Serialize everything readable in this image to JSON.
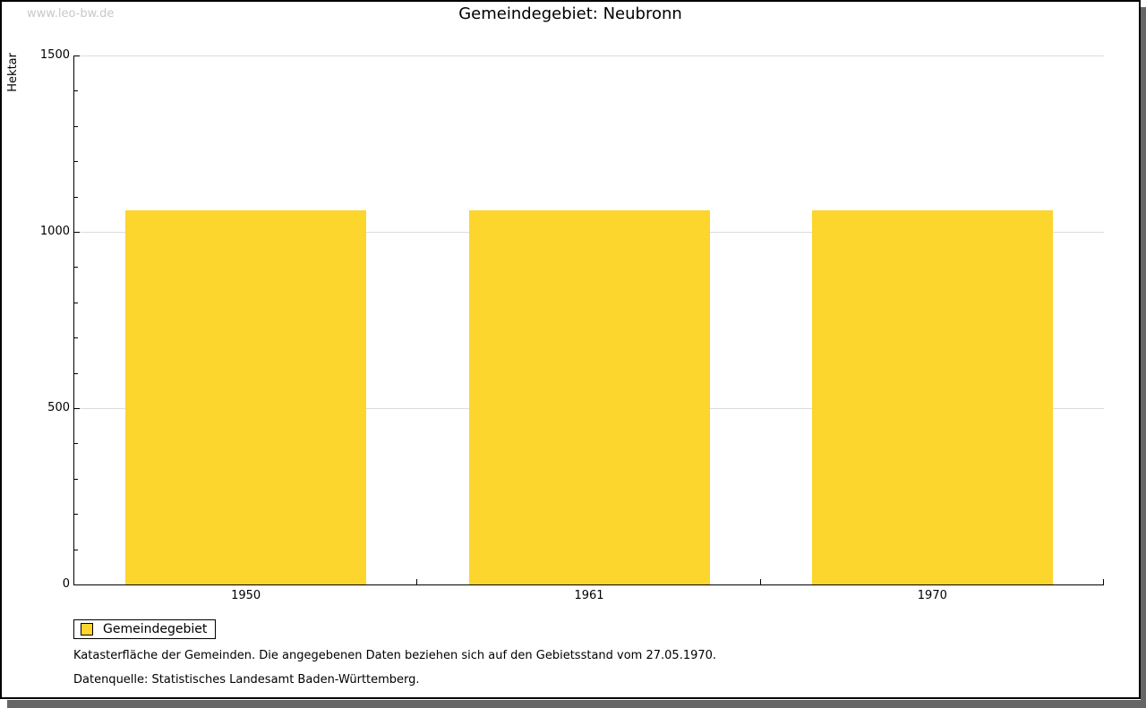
{
  "window": {
    "watermark": "www.leo-bw.de",
    "title": "Gemeindegebiet: Neubronn"
  },
  "chart_data": {
    "type": "bar",
    "title": "Gemeindegebiet: Neubronn",
    "categories": [
      "1950",
      "1961",
      "1970"
    ],
    "series": [
      {
        "name": "Gemeindegebiet",
        "values": [
          1060,
          1060,
          1060
        ]
      }
    ],
    "xlabel": "",
    "ylabel": "Hektar",
    "ylim": [
      0,
      1500
    ],
    "ytick_major": 500,
    "ytick_minor": 100,
    "ytick_labels": [
      "0",
      "500",
      "1000",
      "1500"
    ],
    "grid": "horizontal-major-light-gray",
    "bar_color": "#FCD52D",
    "legend": {
      "position": "bottom-left",
      "entries": [
        {
          "label": "Gemeindegebiet",
          "color": "#FCD52D"
        }
      ]
    }
  },
  "footnotes": [
    "Katasterfläche der Gemeinden. Die angegebenen Daten beziehen sich auf den Gebietsstand vom 27.05.1970.",
    "Datenquelle: Statistisches Landesamt Baden-Württemberg."
  ],
  "colors": {
    "bar": "#FCD52D",
    "gridline": "#DCDCDC",
    "axis": "#000000",
    "shadow": "#666666",
    "watermark": "#C8C8C8",
    "background": "#FFFFFF"
  }
}
